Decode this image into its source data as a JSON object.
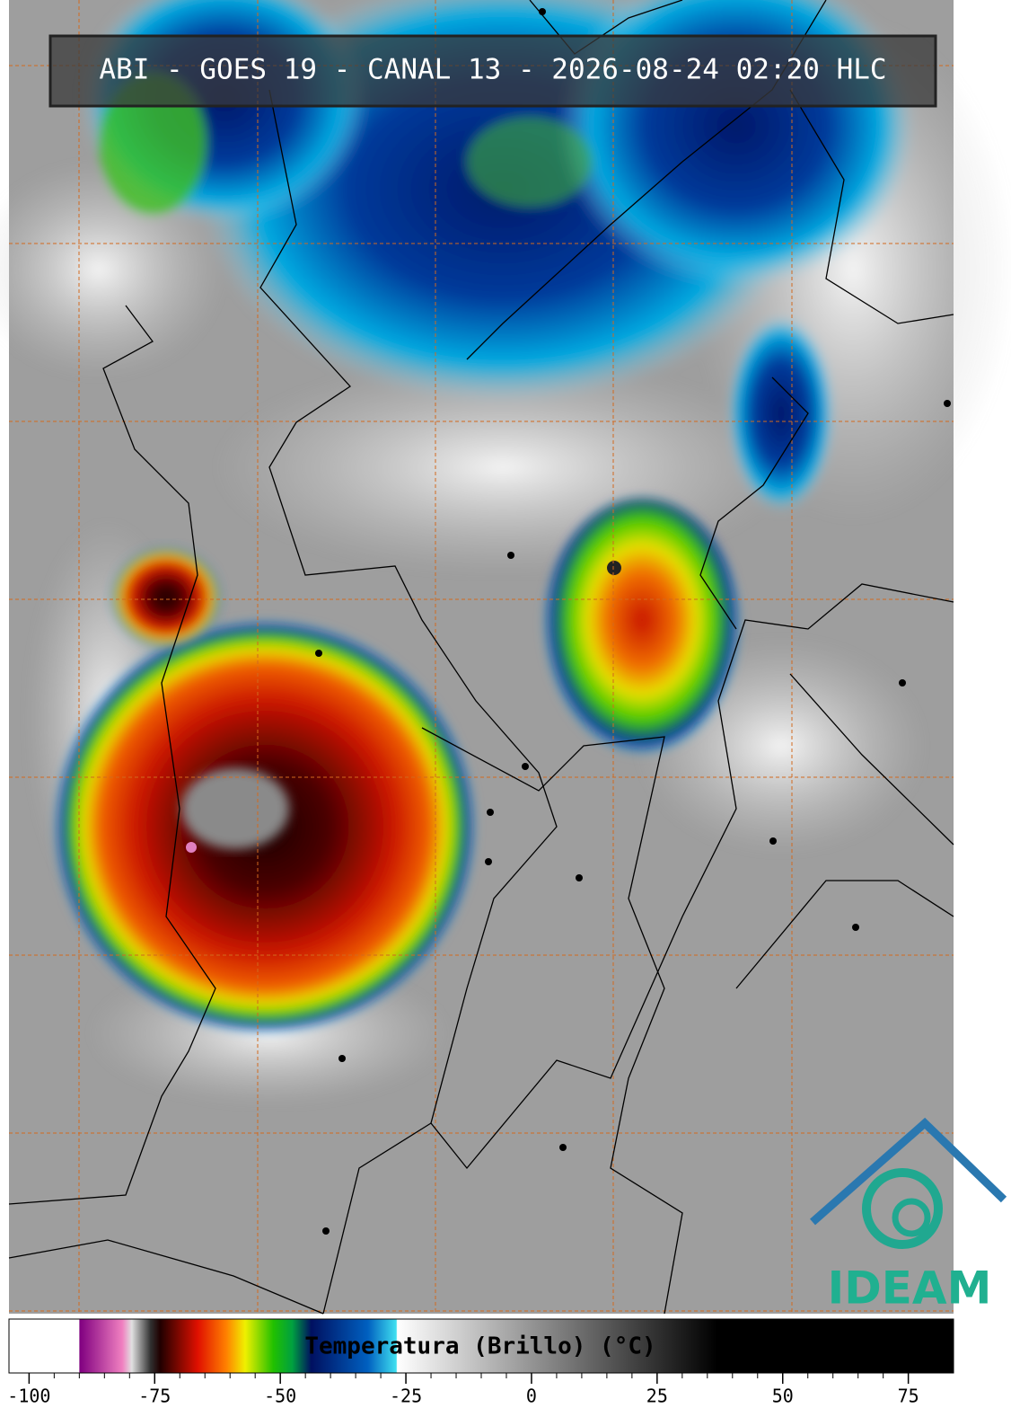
{
  "header": {
    "title": "ABI - GOES 19 - CANAL 13 - 2026-08-24 02:20 HLC"
  },
  "logo": {
    "text": "IDEAM"
  },
  "colorbar": {
    "label": "Temperatura (Brillo) (°C)",
    "xlim": [
      -104,
      84
    ],
    "xticks": [
      -100,
      -75,
      -50,
      -25,
      0,
      25,
      50,
      75
    ]
  }
}
